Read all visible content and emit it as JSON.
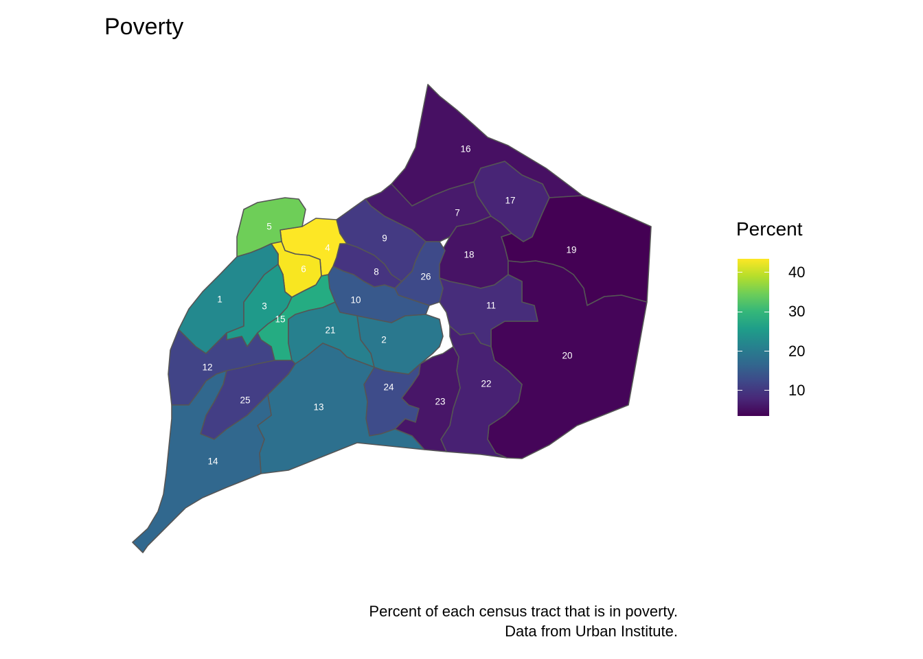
{
  "title": "Poverty",
  "legend": {
    "title": "Percent",
    "ticks": [
      "40",
      "30",
      "20",
      "10"
    ],
    "colorscale": [
      "#440154",
      "#482878",
      "#3e4989",
      "#31688e",
      "#26828e",
      "#1f9e89",
      "#35b779",
      "#6ece58",
      "#b5de2b",
      "#fde725"
    ]
  },
  "caption": {
    "line1": "Percent of each census tract that is in poverty.",
    "line2": "Data from Urban Institute."
  },
  "regions": [
    {
      "id": "1",
      "color": "#23898e"
    },
    {
      "id": "2",
      "color": "#2a788e"
    },
    {
      "id": "3",
      "color": "#1f9a8a"
    },
    {
      "id": "4",
      "color": "#fde725"
    },
    {
      "id": "5",
      "color": "#6ece58"
    },
    {
      "id": "6",
      "color": "#f8e621"
    },
    {
      "id": "7",
      "color": "#481a6c"
    },
    {
      "id": "8",
      "color": "#463480"
    },
    {
      "id": "9",
      "color": "#443a83"
    },
    {
      "id": "10",
      "color": "#38598c"
    },
    {
      "id": "11",
      "color": "#472d7b"
    },
    {
      "id": "12",
      "color": "#414487"
    },
    {
      "id": "13",
      "color": "#2d708e"
    },
    {
      "id": "14",
      "color": "#31688e"
    },
    {
      "id": "15",
      "color": "#25ac82"
    },
    {
      "id": "16",
      "color": "#471063"
    },
    {
      "id": "17",
      "color": "#482576"
    },
    {
      "id": "18",
      "color": "#471365"
    },
    {
      "id": "19",
      "color": "#440154"
    },
    {
      "id": "20",
      "color": "#450559"
    },
    {
      "id": "21",
      "color": "#27808e"
    },
    {
      "id": "22",
      "color": "#482173"
    },
    {
      "id": "23",
      "color": "#481668"
    },
    {
      "id": "24",
      "color": "#3e4c8a"
    },
    {
      "id": "25",
      "color": "#433e85"
    },
    {
      "id": "26",
      "color": "#3e4a89"
    }
  ]
}
